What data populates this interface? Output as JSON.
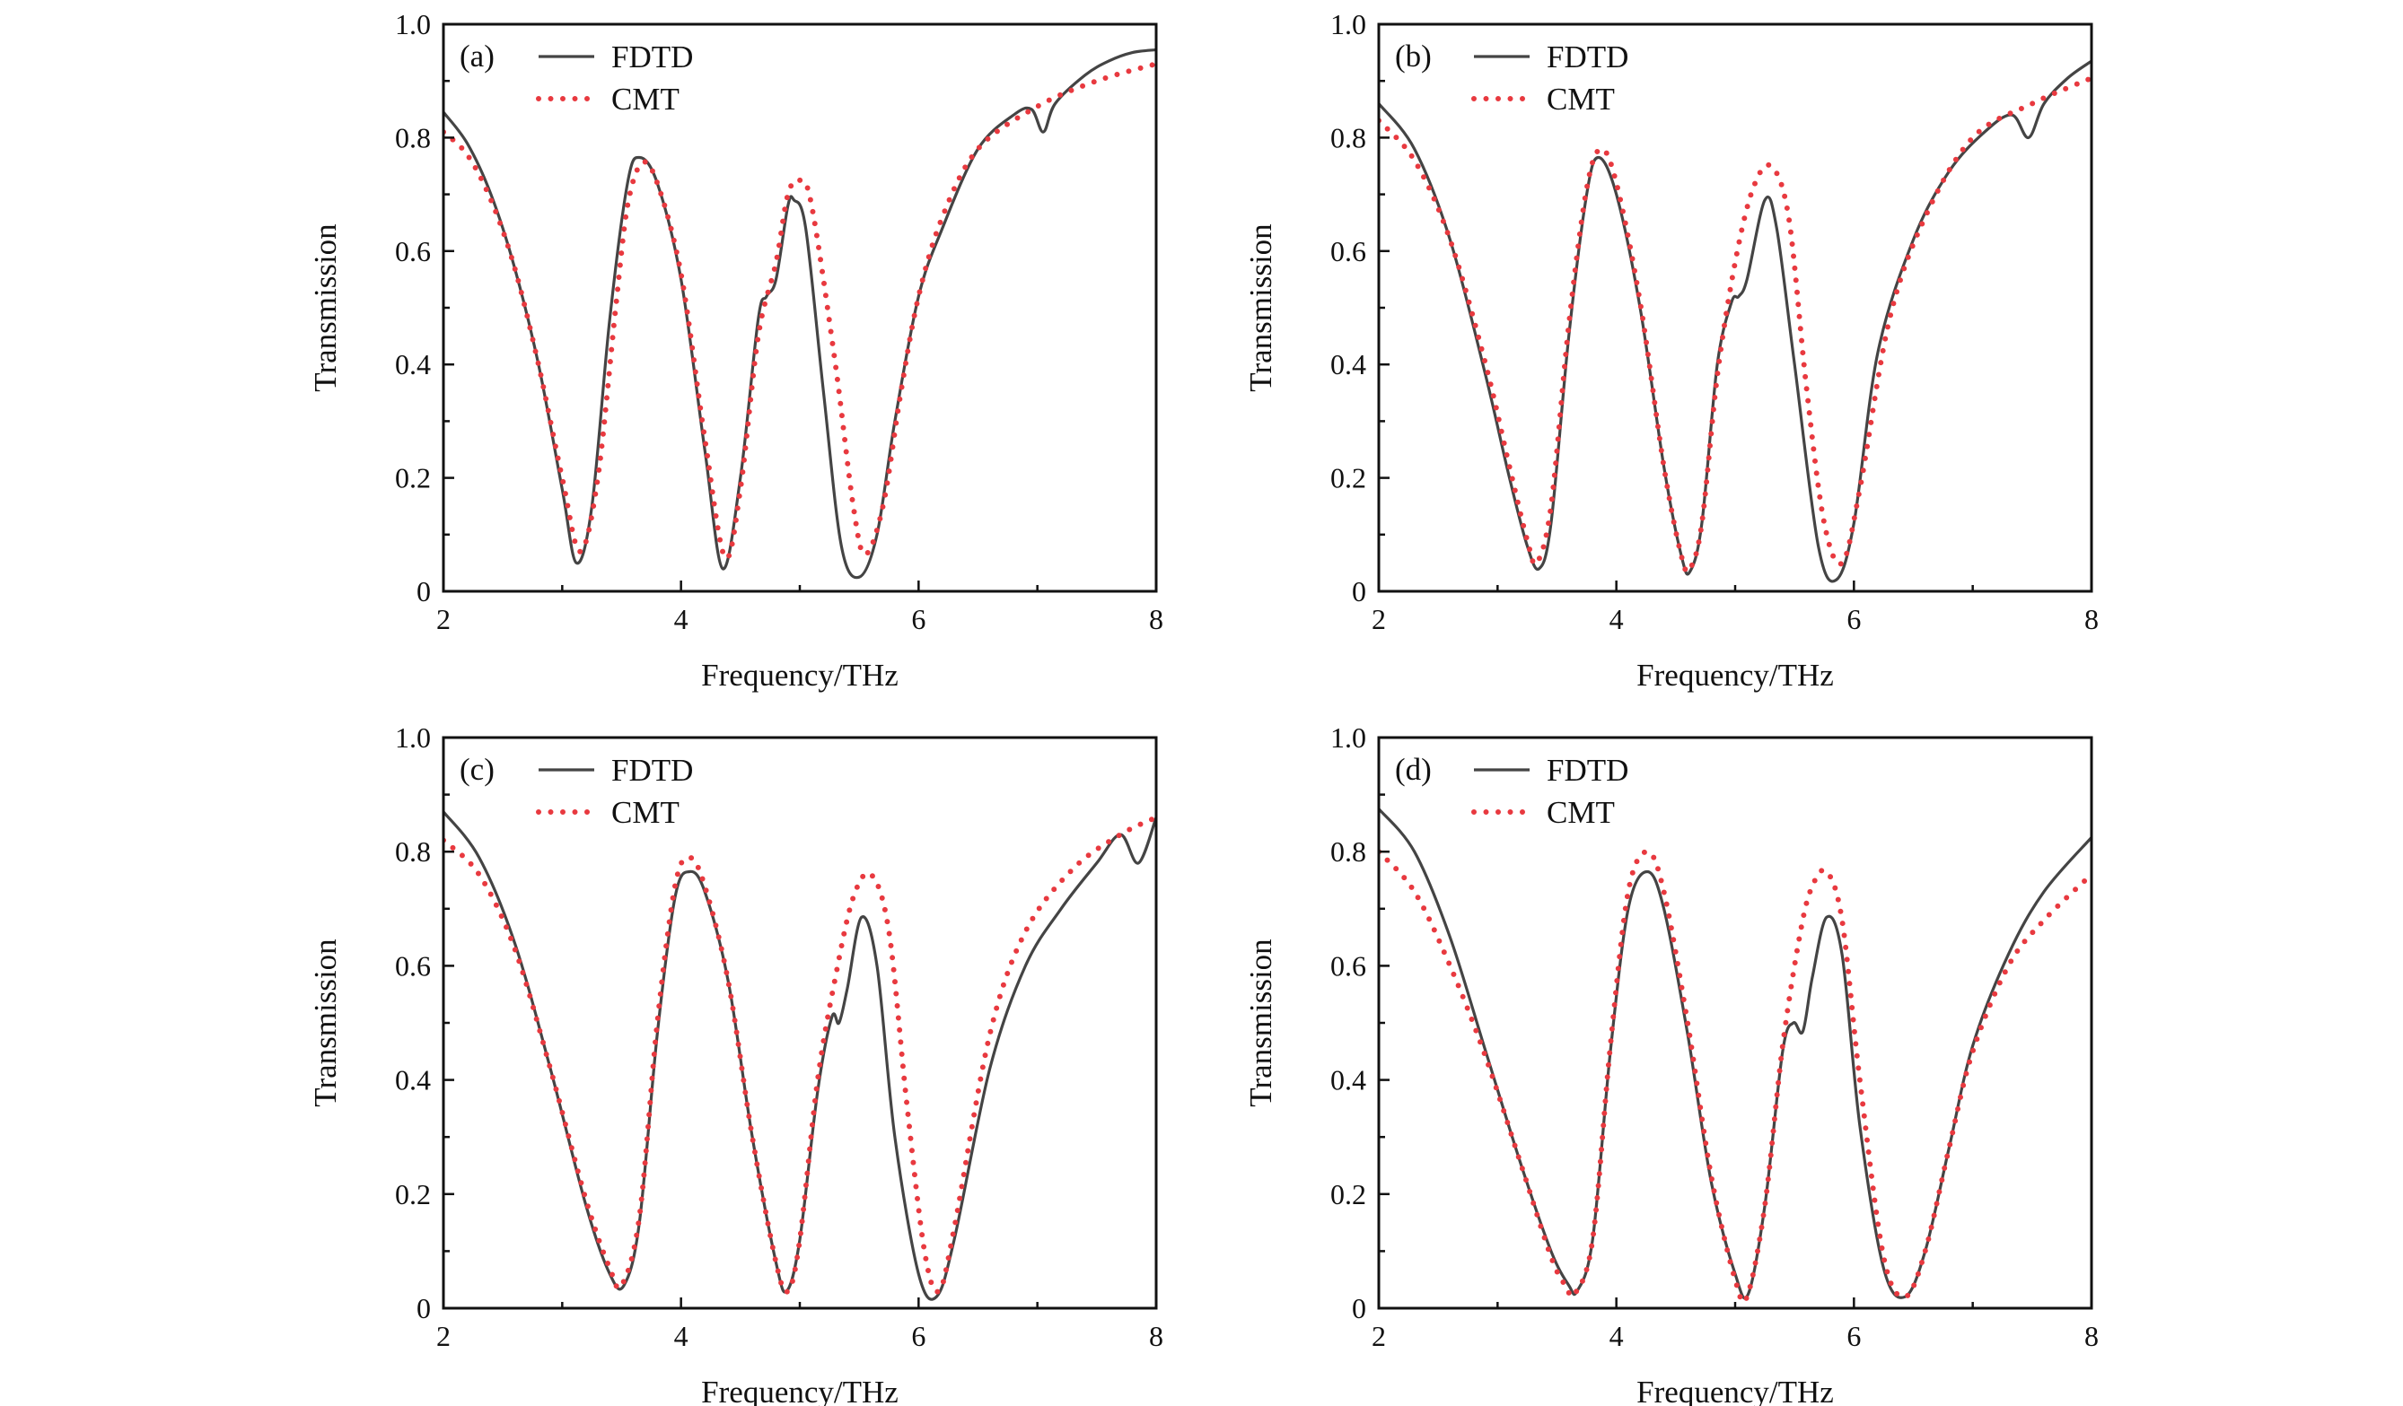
{
  "chart_data": [
    {
      "type": "line",
      "panel_label": "(a)",
      "xlabel": "Frequency/THz",
      "ylabel": "Transmission",
      "xlim": [
        2,
        8
      ],
      "ylim": [
        0,
        1.0
      ],
      "xticks": [
        "2",
        "4",
        "6",
        "8"
      ],
      "yticks": [
        "0",
        "0.2",
        "0.4",
        "0.6",
        "0.8",
        "1.0"
      ],
      "legend_position": "top-left",
      "series": [
        {
          "name": "FDTD",
          "style": "solid",
          "color": "#444444",
          "x": [
            2.0,
            2.2,
            2.4,
            2.6,
            2.8,
            3.0,
            3.12,
            3.25,
            3.4,
            3.55,
            3.65,
            3.8,
            4.0,
            4.2,
            4.35,
            4.5,
            4.65,
            4.72,
            4.8,
            4.9,
            4.95,
            5.05,
            5.2,
            5.35,
            5.5,
            5.65,
            5.8,
            6.0,
            6.2,
            6.5,
            6.8,
            6.95,
            7.05,
            7.15,
            7.4,
            7.6,
            7.8,
            8.0
          ],
          "y": [
            0.845,
            0.79,
            0.7,
            0.57,
            0.4,
            0.18,
            0.05,
            0.15,
            0.48,
            0.72,
            0.765,
            0.72,
            0.55,
            0.25,
            0.04,
            0.2,
            0.48,
            0.52,
            0.55,
            0.68,
            0.69,
            0.64,
            0.35,
            0.08,
            0.025,
            0.1,
            0.3,
            0.52,
            0.64,
            0.78,
            0.84,
            0.85,
            0.81,
            0.86,
            0.91,
            0.935,
            0.95,
            0.955
          ]
        },
        {
          "name": "CMT",
          "style": "dotted",
          "color": "#e8393f",
          "x": [
            2.0,
            2.2,
            2.4,
            2.6,
            2.8,
            3.0,
            3.15,
            3.3,
            3.45,
            3.55,
            3.67,
            3.8,
            4.0,
            4.2,
            4.37,
            4.5,
            4.65,
            4.8,
            4.9,
            5.0,
            5.1,
            5.3,
            5.45,
            5.55,
            5.7,
            5.85,
            6.0,
            6.2,
            6.5,
            7.0,
            7.5,
            8.0
          ],
          "y": [
            0.81,
            0.77,
            0.69,
            0.57,
            0.4,
            0.2,
            0.07,
            0.2,
            0.5,
            0.68,
            0.755,
            0.72,
            0.56,
            0.27,
            0.06,
            0.18,
            0.45,
            0.58,
            0.7,
            0.725,
            0.68,
            0.4,
            0.15,
            0.065,
            0.15,
            0.35,
            0.52,
            0.66,
            0.78,
            0.855,
            0.9,
            0.93
          ]
        }
      ]
    },
    {
      "type": "line",
      "panel_label": "(b)",
      "xlabel": "Frequency/THz",
      "ylabel": "Transmission",
      "xlim": [
        2,
        8
      ],
      "ylim": [
        0,
        1.0
      ],
      "xticks": [
        "2",
        "4",
        "6",
        "8"
      ],
      "yticks": [
        "0",
        "0.2",
        "0.4",
        "0.6",
        "0.8",
        "1.0"
      ],
      "legend_position": "top-left",
      "series": [
        {
          "name": "FDTD",
          "style": "solid",
          "color": "#444444",
          "x": [
            2.0,
            2.3,
            2.6,
            2.9,
            3.1,
            3.25,
            3.35,
            3.45,
            3.6,
            3.75,
            3.85,
            4.0,
            4.2,
            4.4,
            4.55,
            4.62,
            4.72,
            4.85,
            4.97,
            5.03,
            5.1,
            5.25,
            5.35,
            5.5,
            5.7,
            5.85,
            6.0,
            6.2,
            6.5,
            6.8,
            7.1,
            7.33,
            7.47,
            7.6,
            7.8,
            8.0
          ],
          "y": [
            0.86,
            0.78,
            0.62,
            0.38,
            0.2,
            0.08,
            0.04,
            0.12,
            0.45,
            0.7,
            0.765,
            0.7,
            0.5,
            0.22,
            0.06,
            0.035,
            0.12,
            0.4,
            0.51,
            0.52,
            0.55,
            0.69,
            0.64,
            0.4,
            0.08,
            0.02,
            0.12,
            0.42,
            0.62,
            0.74,
            0.81,
            0.84,
            0.8,
            0.86,
            0.905,
            0.935
          ]
        },
        {
          "name": "CMT",
          "style": "dotted",
          "color": "#e8393f",
          "x": [
            2.0,
            2.3,
            2.6,
            2.9,
            3.1,
            3.25,
            3.33,
            3.45,
            3.6,
            3.75,
            3.87,
            4.0,
            4.2,
            4.4,
            4.55,
            4.62,
            4.72,
            4.85,
            5.0,
            5.15,
            5.3,
            5.45,
            5.6,
            5.75,
            5.9,
            6.05,
            6.3,
            6.6,
            7.0,
            7.5,
            8.0
          ],
          "y": [
            0.83,
            0.76,
            0.62,
            0.4,
            0.22,
            0.09,
            0.05,
            0.15,
            0.47,
            0.71,
            0.78,
            0.72,
            0.51,
            0.22,
            0.06,
            0.04,
            0.12,
            0.38,
            0.58,
            0.71,
            0.75,
            0.66,
            0.36,
            0.12,
            0.05,
            0.18,
            0.48,
            0.66,
            0.8,
            0.86,
            0.905
          ]
        }
      ]
    },
    {
      "type": "line",
      "panel_label": "(c)",
      "xlabel": "Frequency/THz",
      "ylabel": "Transmission",
      "xlim": [
        2,
        8
      ],
      "ylim": [
        0,
        1.0
      ],
      "xticks": [
        "2",
        "4",
        "6",
        "8"
      ],
      "yticks": [
        "0",
        "0.2",
        "0.4",
        "0.6",
        "0.8",
        "1.0"
      ],
      "legend_position": "top-left",
      "series": [
        {
          "name": "FDTD",
          "style": "solid",
          "color": "#444444",
          "x": [
            2.0,
            2.3,
            2.6,
            2.9,
            3.2,
            3.4,
            3.52,
            3.65,
            3.8,
            3.95,
            4.07,
            4.2,
            4.4,
            4.6,
            4.8,
            4.89,
            5.0,
            5.15,
            5.27,
            5.33,
            5.4,
            5.52,
            5.65,
            5.8,
            6.0,
            6.15,
            6.3,
            6.6,
            6.9,
            7.2,
            7.5,
            7.7,
            7.85,
            8.0
          ],
          "y": [
            0.87,
            0.79,
            0.64,
            0.42,
            0.18,
            0.06,
            0.04,
            0.15,
            0.48,
            0.72,
            0.765,
            0.73,
            0.57,
            0.3,
            0.08,
            0.03,
            0.12,
            0.38,
            0.51,
            0.5,
            0.56,
            0.685,
            0.6,
            0.3,
            0.06,
            0.02,
            0.12,
            0.42,
            0.6,
            0.7,
            0.78,
            0.83,
            0.78,
            0.86
          ]
        },
        {
          "name": "CMT",
          "style": "dotted",
          "color": "#e8393f",
          "x": [
            2.0,
            2.3,
            2.6,
            2.9,
            3.2,
            3.4,
            3.5,
            3.65,
            3.8,
            3.95,
            4.07,
            4.2,
            4.4,
            4.6,
            4.8,
            4.9,
            5.0,
            5.15,
            5.3,
            5.45,
            5.6,
            5.75,
            5.9,
            6.05,
            6.17,
            6.3,
            6.6,
            6.9,
            7.3,
            7.7,
            8.0
          ],
          "y": [
            0.82,
            0.76,
            0.63,
            0.42,
            0.19,
            0.07,
            0.04,
            0.16,
            0.5,
            0.74,
            0.79,
            0.74,
            0.57,
            0.3,
            0.08,
            0.03,
            0.12,
            0.4,
            0.58,
            0.72,
            0.76,
            0.66,
            0.36,
            0.1,
            0.03,
            0.14,
            0.48,
            0.66,
            0.77,
            0.83,
            0.86
          ]
        }
      ]
    },
    {
      "type": "line",
      "panel_label": "(d)",
      "xlabel": "Frequency/THz",
      "ylabel": "Transmission",
      "xlim": [
        2,
        8
      ],
      "ylim": [
        0,
        1.0
      ],
      "xticks": [
        "2",
        "4",
        "6",
        "8"
      ],
      "yticks": [
        "0",
        "0.2",
        "0.4",
        "0.6",
        "0.8",
        "1.0"
      ],
      "legend_position": "top-left",
      "series": [
        {
          "name": "FDTD",
          "style": "solid",
          "color": "#444444",
          "x": [
            2.0,
            2.3,
            2.6,
            2.9,
            3.2,
            3.45,
            3.6,
            3.67,
            3.8,
            3.95,
            4.1,
            4.26,
            4.4,
            4.6,
            4.8,
            5.0,
            5.11,
            5.25,
            5.4,
            5.49,
            5.57,
            5.65,
            5.77,
            5.9,
            6.05,
            6.25,
            6.43,
            6.6,
            6.8,
            7.0,
            7.3,
            7.6,
            8.0
          ],
          "y": [
            0.875,
            0.8,
            0.65,
            0.45,
            0.25,
            0.1,
            0.04,
            0.03,
            0.12,
            0.45,
            0.7,
            0.765,
            0.7,
            0.48,
            0.22,
            0.06,
            0.025,
            0.18,
            0.45,
            0.5,
            0.485,
            0.58,
            0.685,
            0.62,
            0.32,
            0.07,
            0.02,
            0.1,
            0.28,
            0.46,
            0.62,
            0.73,
            0.825
          ]
        },
        {
          "name": "CMT",
          "style": "dotted",
          "color": "#e8393f",
          "x": [
            2.0,
            2.3,
            2.6,
            2.9,
            3.2,
            3.45,
            3.57,
            3.65,
            3.8,
            3.95,
            4.1,
            4.26,
            4.4,
            4.6,
            4.8,
            5.0,
            5.1,
            5.25,
            5.4,
            5.55,
            5.65,
            5.77,
            5.9,
            6.05,
            6.25,
            6.43,
            6.6,
            6.8,
            7.0,
            7.3,
            7.6,
            8.0
          ],
          "y": [
            0.8,
            0.73,
            0.6,
            0.44,
            0.25,
            0.09,
            0.04,
            0.025,
            0.12,
            0.46,
            0.73,
            0.8,
            0.73,
            0.5,
            0.23,
            0.05,
            0.02,
            0.18,
            0.46,
            0.66,
            0.74,
            0.765,
            0.68,
            0.4,
            0.09,
            0.02,
            0.1,
            0.28,
            0.45,
            0.6,
            0.68,
            0.76
          ]
        }
      ]
    }
  ]
}
